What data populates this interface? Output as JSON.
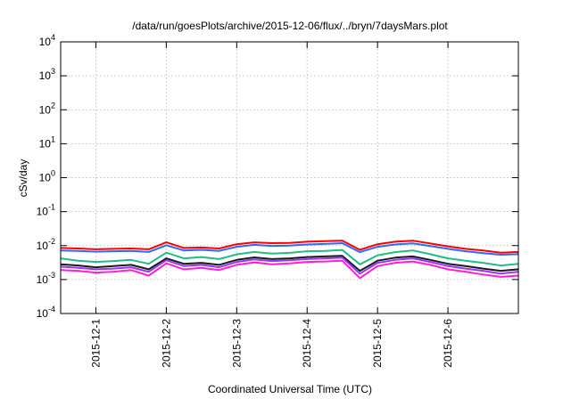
{
  "chart_data": {
    "type": "line",
    "title": "/data/run/goesPlots/archive/2015-12-06/flux/../bryn/7daysMars.plot",
    "xlabel": "Coordinated Universal Time (UTC)",
    "ylabel": "cSv/day",
    "y_scale": "log",
    "ylim": [
      0.0001,
      10000
    ],
    "xlim": [
      0.5,
      7.0
    ],
    "y_ticks": [
      {
        "value": 0.0001,
        "base": "10",
        "exp": "-4"
      },
      {
        "value": 0.001,
        "base": "10",
        "exp": "-3"
      },
      {
        "value": 0.01,
        "base": "10",
        "exp": "-2"
      },
      {
        "value": 0.1,
        "base": "10",
        "exp": "-1"
      },
      {
        "value": 1,
        "base": "10",
        "exp": "0"
      },
      {
        "value": 10,
        "base": "10",
        "exp": "1"
      },
      {
        "value": 100,
        "base": "10",
        "exp": "2"
      },
      {
        "value": 1000,
        "base": "10",
        "exp": "3"
      },
      {
        "value": 10000,
        "base": "10",
        "exp": "4"
      }
    ],
    "x_ticks": [
      {
        "value": 1,
        "label": "2015-12-1"
      },
      {
        "value": 2,
        "label": "2015-12-2"
      },
      {
        "value": 3,
        "label": "2015-12-3"
      },
      {
        "value": 4,
        "label": "2015-12-4"
      },
      {
        "value": 5,
        "label": "2015-12-5"
      },
      {
        "value": 6,
        "label": "2015-12-6"
      }
    ],
    "grid": true,
    "x": [
      0.5,
      0.75,
      1.0,
      1.25,
      1.5,
      1.75,
      2.0,
      2.25,
      2.5,
      2.75,
      3.0,
      3.25,
      3.5,
      3.75,
      4.0,
      4.25,
      4.5,
      4.75,
      5.0,
      5.25,
      5.5,
      5.75,
      6.0,
      6.25,
      6.5,
      6.75,
      7.0
    ],
    "series": [
      {
        "color": "#ff0000",
        "values": [
          0.0085,
          0.0082,
          0.0078,
          0.008,
          0.0082,
          0.0078,
          0.0125,
          0.0085,
          0.0088,
          0.0082,
          0.011,
          0.0125,
          0.0118,
          0.012,
          0.013,
          0.0135,
          0.014,
          0.0075,
          0.011,
          0.013,
          0.014,
          0.0115,
          0.0095,
          0.008,
          0.0072,
          0.0062,
          0.0065
        ]
      },
      {
        "color": "#3366ff",
        "values": [
          0.0072,
          0.007,
          0.0066,
          0.0068,
          0.007,
          0.0065,
          0.0102,
          0.0072,
          0.0075,
          0.007,
          0.0092,
          0.0105,
          0.0098,
          0.01,
          0.0108,
          0.0112,
          0.0118,
          0.0064,
          0.0092,
          0.0108,
          0.0116,
          0.0097,
          0.008,
          0.0068,
          0.006,
          0.0054,
          0.0056
        ]
      },
      {
        "color": "#22bb88",
        "values": [
          0.0042,
          0.0036,
          0.0033,
          0.0035,
          0.0038,
          0.0029,
          0.0062,
          0.0042,
          0.0046,
          0.004,
          0.0055,
          0.0065,
          0.0058,
          0.0061,
          0.0068,
          0.007,
          0.0074,
          0.0028,
          0.0052,
          0.0064,
          0.0072,
          0.0056,
          0.0042,
          0.0036,
          0.0031,
          0.0026,
          0.0029
        ]
      },
      {
        "color": "#1a1a1a",
        "values": [
          0.0028,
          0.0026,
          0.0023,
          0.0025,
          0.0027,
          0.002,
          0.0042,
          0.0029,
          0.0031,
          0.0027,
          0.0038,
          0.0045,
          0.004,
          0.0042,
          0.0046,
          0.0048,
          0.005,
          0.0018,
          0.0036,
          0.0044,
          0.0048,
          0.0038,
          0.0029,
          0.0025,
          0.0021,
          0.0018,
          0.002
        ]
      },
      {
        "color": "#9933ff",
        "values": [
          0.0024,
          0.0022,
          0.002,
          0.0021,
          0.0023,
          0.0017,
          0.0037,
          0.0025,
          0.0027,
          0.0023,
          0.0033,
          0.0039,
          0.0035,
          0.0037,
          0.004,
          0.0042,
          0.0044,
          0.0015,
          0.0031,
          0.0038,
          0.0042,
          0.0033,
          0.0025,
          0.0021,
          0.0018,
          0.0015,
          0.0017
        ]
      },
      {
        "color": "#ff22cc",
        "values": [
          0.0019,
          0.0018,
          0.0016,
          0.0017,
          0.0019,
          0.0013,
          0.003,
          0.002,
          0.0022,
          0.0019,
          0.0027,
          0.0032,
          0.0028,
          0.003,
          0.0033,
          0.0034,
          0.0036,
          0.0011,
          0.0025,
          0.0031,
          0.0034,
          0.0027,
          0.002,
          0.0017,
          0.0014,
          0.0012,
          0.0013
        ]
      }
    ]
  }
}
